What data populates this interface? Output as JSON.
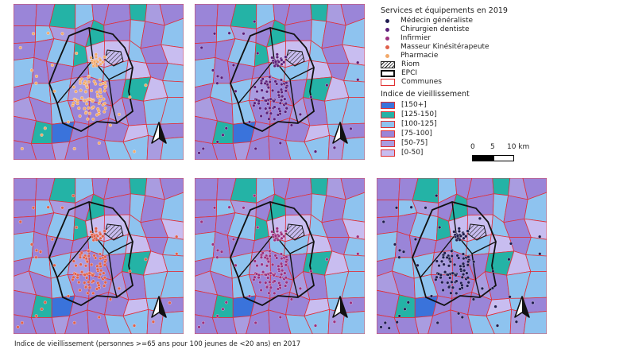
{
  "legend": {
    "services_title": "Services et équipements en 2019",
    "services": [
      {
        "label": "Médecin généraliste",
        "color": "#1f1c4f"
      },
      {
        "label": "Chirurgien dentiste",
        "color": "#5b1f7a"
      },
      {
        "label": "Infirmier",
        "color": "#9b2f7e"
      },
      {
        "label": "Masseur Kinésitérapeute",
        "color": "#e0604a"
      },
      {
        "label": "Pharmacie",
        "color": "#f2a96a"
      }
    ],
    "riom_label": "Riom",
    "epci_label": "EPCI",
    "communes_label": "Communes",
    "index_title": "Indice de vieillissement",
    "classes": [
      {
        "label": "[150+]",
        "color": "#3a73db"
      },
      {
        "label": "[125-150]",
        "color": "#24b3a6"
      },
      {
        "label": "[100-125]",
        "color": "#8ec3ef"
      },
      {
        "label": "[75-100]",
        "color": "#9a85d8"
      },
      {
        "label": "[50-75]",
        "color": "#a99ce0"
      },
      {
        "label": "[0-50]",
        "color": "#c8bdf0"
      }
    ]
  },
  "scale": {
    "t0": "0",
    "t1": "5",
    "t2": "10 km"
  },
  "caption": "Indice de vieillissement (personnes >=65 ans pour 100 jeunes de <20 ans) en 2017",
  "maps": [
    {
      "service": "Pharmacie",
      "color": "#f2a96a"
    },
    {
      "service": "Chirurgien dentiste",
      "color": "#5b1f7a"
    },
    {
      "service": "Masseur Kinésitérapeute",
      "color": "#e0604a"
    },
    {
      "service": "Infirmier",
      "color": "#9b2f7e"
    },
    {
      "service": "Médecin généraliste",
      "color": "#1f1c4f"
    }
  ],
  "icons": {
    "north_arrow": "north-arrow-icon"
  }
}
